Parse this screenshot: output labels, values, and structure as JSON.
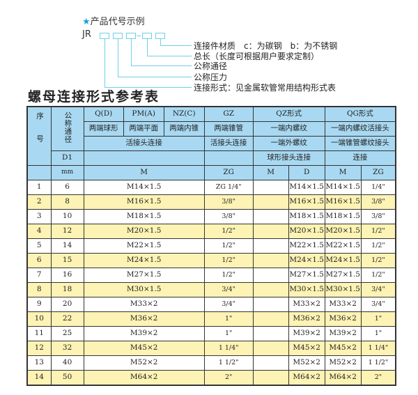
{
  "diagram": {
    "heading": "产品代号示例",
    "prefix": "JR",
    "labels": [
      "连接件材质　c：为碳钢　b：为不锈钢",
      "总长（长度可根据用户要求定制）",
      "公称通径",
      "公称压力",
      "连接形式：见金属软管常用结构形式表"
    ],
    "accent_color": "#6fd0e8",
    "star_icon": "star"
  },
  "title": "螺母连接形式参考表",
  "header": {
    "seq": "序号",
    "dn": "公称通径",
    "d1": "D1",
    "mm": "mm",
    "qd": "Q(D)",
    "pm": "PM(A)",
    "nz": "NZ(C)",
    "gz": "GZ",
    "qz": "QZ形式",
    "qg": "QG形式",
    "qd_desc": "两端球形",
    "pm_desc": "两端平面",
    "nz_desc": "两端内锥",
    "gz_desc": "两端锥管",
    "qz_desc1": "一端内螺纹",
    "qg_desc1": "一端内螺纹活接头",
    "conn1": "活接头连接",
    "gz_conn": "活接头连接",
    "qz_desc2": "一端外螺纹",
    "qg_desc2": "一端锥管螺纹接头",
    "qz_desc3": "球形接头连接",
    "qg_desc3": "连接",
    "m": "M",
    "zg": "ZG",
    "qz_m": "M",
    "qz_d": "D",
    "qg_m": "M",
    "qg_zg": "ZG",
    "header_color": "#a9d9f2",
    "stripe_color": "#fdf3b4"
  },
  "rows": [
    {
      "no": "1",
      "dn": "6",
      "m": "M14×1.5",
      "gz": "ZG 1/4\"",
      "qz_m": "",
      "qz_d": "M14×1.5",
      "qg_m": "M14×1.5",
      "qg_zg": "1/4\""
    },
    {
      "no": "2",
      "dn": "8",
      "m": "M16×1.5",
      "gz": "3/8\"",
      "qz_m": "",
      "qz_d": "M16×1.5",
      "qg_m": "M16×1.5",
      "qg_zg": "3/8\""
    },
    {
      "no": "3",
      "dn": "10",
      "m": "M18×1.5",
      "gz": "3/8\"",
      "qz_m": "",
      "qz_d": "M18×1.5",
      "qg_m": "M18×1.5",
      "qg_zg": "3/8\""
    },
    {
      "no": "4",
      "dn": "12",
      "m": "M20×1.5",
      "gz": "1/2\"",
      "qz_m": "",
      "qz_d": "M20×1.5",
      "qg_m": "M20×1.5",
      "qg_zg": "1/2\""
    },
    {
      "no": "5",
      "dn": "14",
      "m": "M22×1.5",
      "gz": "1/2\"",
      "qz_m": "",
      "qz_d": "M22×1.5",
      "qg_m": "M22×1.5",
      "qg_zg": "1/2\""
    },
    {
      "no": "6",
      "dn": "15",
      "m": "M24×1.5",
      "gz": "1/2\"",
      "qz_m": "",
      "qz_d": "M24×1.5",
      "qg_m": "M24×1.5",
      "qg_zg": "1/2\""
    },
    {
      "no": "7",
      "dn": "16",
      "m": "M27×1.5",
      "gz": "1/2\"",
      "qz_m": "",
      "qz_d": "M27×1.5",
      "qg_m": "M27×1.5",
      "qg_zg": "1/2\""
    },
    {
      "no": "8",
      "dn": "18",
      "m": "M30×1.5",
      "gz": "3/4\"",
      "qz_m": "",
      "qz_d": "M30×1.5",
      "qg_m": "M30×1.5",
      "qg_zg": "3/4\""
    },
    {
      "no": "9",
      "dn": "20",
      "m": "M33×2",
      "gz": "3/4\"",
      "qz_m": "",
      "qz_d": "M33×2",
      "qg_m": "M33×2",
      "qg_zg": "3/4\""
    },
    {
      "no": "10",
      "dn": "22",
      "m": "M36×2",
      "gz": "1\"",
      "qz_m": "",
      "qz_d": "M36×2",
      "qg_m": "M36×2",
      "qg_zg": "1\""
    },
    {
      "no": "11",
      "dn": "25",
      "m": "M39×2",
      "gz": "1\"",
      "qz_m": "",
      "qz_d": "M39×2",
      "qg_m": "M39×2",
      "qg_zg": "1\""
    },
    {
      "no": "12",
      "dn": "32",
      "m": "M45×2",
      "gz": "1 1/4\"",
      "qz_m": "",
      "qz_d": "M45×2",
      "qg_m": "M45×2",
      "qg_zg": "1 1/4\""
    },
    {
      "no": "13",
      "dn": "40",
      "m": "M52×2",
      "gz": "1 1/2\"",
      "qz_m": "",
      "qz_d": "M52×2",
      "qg_m": "M52×2",
      "qg_zg": "1 1/2\""
    },
    {
      "no": "14",
      "dn": "50",
      "m": "M64×2",
      "gz": "2\"",
      "qz_m": "",
      "qz_d": "M64×2",
      "qg_m": "M64×2",
      "qg_zg": "2\""
    }
  ]
}
